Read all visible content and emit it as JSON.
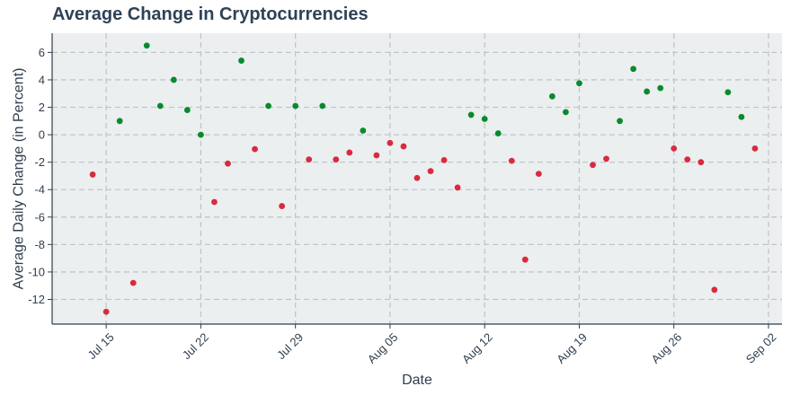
{
  "chart_data": {
    "type": "scatter",
    "title": "Average Change in Cryptocurrencies",
    "xlabel": "Date",
    "ylabel": "Average Daily Change (in Percent)",
    "x_ticks": [
      {
        "date": "2024-07-15",
        "label": "Jul 15"
      },
      {
        "date": "2024-07-22",
        "label": "Jul 22"
      },
      {
        "date": "2024-07-29",
        "label": "Jul 29"
      },
      {
        "date": "2024-08-05",
        "label": "Aug 05"
      },
      {
        "date": "2024-08-12",
        "label": "Aug 12"
      },
      {
        "date": "2024-08-19",
        "label": "Aug 19"
      },
      {
        "date": "2024-08-26",
        "label": "Aug 26"
      },
      {
        "date": "2024-09-02",
        "label": "Sep 02"
      }
    ],
    "y_ticks": [
      6,
      4,
      2,
      0,
      -2,
      -4,
      -6,
      -8,
      -10,
      -12
    ],
    "xlim": [
      "2024-07-11",
      "2024-09-03"
    ],
    "ylim": [
      -13.8,
      7.4
    ],
    "grid": true,
    "colors": {
      "positive": "#0a8a2c",
      "negative": "#d92a3f",
      "plot_bg": "#ebeff0"
    },
    "points": [
      {
        "x": "2024-07-14",
        "y": -2.9
      },
      {
        "x": "2024-07-15",
        "y": -12.9
      },
      {
        "x": "2024-07-16",
        "y": 1.0
      },
      {
        "x": "2024-07-17",
        "y": -10.8
      },
      {
        "x": "2024-07-18",
        "y": 6.5
      },
      {
        "x": "2024-07-19",
        "y": 2.1
      },
      {
        "x": "2024-07-20",
        "y": 4.0
      },
      {
        "x": "2024-07-21",
        "y": 1.8
      },
      {
        "x": "2024-07-22",
        "y": 0.0
      },
      {
        "x": "2024-07-23",
        "y": -4.9
      },
      {
        "x": "2024-07-24",
        "y": -2.1
      },
      {
        "x": "2024-07-25",
        "y": 5.4
      },
      {
        "x": "2024-07-26",
        "y": -1.05
      },
      {
        "x": "2024-07-27",
        "y": 2.1
      },
      {
        "x": "2024-07-28",
        "y": -5.2
      },
      {
        "x": "2024-07-29",
        "y": 2.1
      },
      {
        "x": "2024-07-30",
        "y": -1.8
      },
      {
        "x": "2024-07-31",
        "y": 2.1
      },
      {
        "x": "2024-08-01",
        "y": -1.8
      },
      {
        "x": "2024-08-02",
        "y": -1.3
      },
      {
        "x": "2024-08-03",
        "y": 0.3
      },
      {
        "x": "2024-08-04",
        "y": -1.5
      },
      {
        "x": "2024-08-05",
        "y": -0.6
      },
      {
        "x": "2024-08-06",
        "y": -0.85
      },
      {
        "x": "2024-08-07",
        "y": -3.15
      },
      {
        "x": "2024-08-08",
        "y": -2.65
      },
      {
        "x": "2024-08-09",
        "y": -1.85
      },
      {
        "x": "2024-08-10",
        "y": -3.85
      },
      {
        "x": "2024-08-11",
        "y": 1.45
      },
      {
        "x": "2024-08-12",
        "y": 1.15
      },
      {
        "x": "2024-08-13",
        "y": 0.1
      },
      {
        "x": "2024-08-14",
        "y": -1.9
      },
      {
        "x": "2024-08-15",
        "y": -9.1
      },
      {
        "x": "2024-08-16",
        "y": -2.85
      },
      {
        "x": "2024-08-17",
        "y": 2.8
      },
      {
        "x": "2024-08-18",
        "y": 1.65
      },
      {
        "x": "2024-08-19",
        "y": 3.75
      },
      {
        "x": "2024-08-20",
        "y": -2.2
      },
      {
        "x": "2024-08-21",
        "y": -1.75
      },
      {
        "x": "2024-08-22",
        "y": 1.0
      },
      {
        "x": "2024-08-23",
        "y": 4.8
      },
      {
        "x": "2024-08-24",
        "y": 3.15
      },
      {
        "x": "2024-08-25",
        "y": 3.4
      },
      {
        "x": "2024-08-26",
        "y": -1.0
      },
      {
        "x": "2024-08-27",
        "y": -1.8
      },
      {
        "x": "2024-08-28",
        "y": -2.0
      },
      {
        "x": "2024-08-29",
        "y": -11.3
      },
      {
        "x": "2024-08-30",
        "y": 3.1
      },
      {
        "x": "2024-08-31",
        "y": 1.3
      },
      {
        "x": "2024-09-01",
        "y": -1.0
      }
    ]
  }
}
